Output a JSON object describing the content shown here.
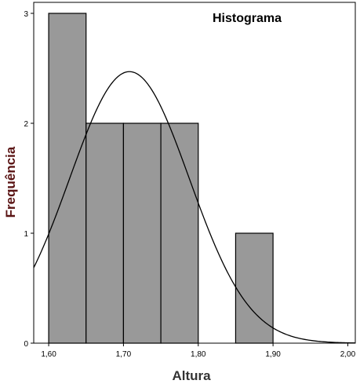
{
  "chart_data": {
    "type": "bar",
    "subtype": "histogram",
    "title": "Histograma",
    "xlabel": "Altura",
    "ylabel": "Frequência",
    "xlim": [
      1.58,
      2.01
    ],
    "ylim": [
      0,
      3.1
    ],
    "x_ticks": [
      {
        "value": 1.6,
        "label": "1,60"
      },
      {
        "value": 1.7,
        "label": "1,70"
      },
      {
        "value": 1.8,
        "label": "1,80"
      },
      {
        "value": 1.9,
        "label": "1,90"
      },
      {
        "value": 2.0,
        "label": "2,00"
      }
    ],
    "y_ticks": [
      {
        "value": 0,
        "label": "0"
      },
      {
        "value": 1,
        "label": "1"
      },
      {
        "value": 2,
        "label": "2"
      },
      {
        "value": 3,
        "label": "3"
      }
    ],
    "bins": [
      {
        "start": 1.6,
        "end": 1.65,
        "count": 3
      },
      {
        "start": 1.65,
        "end": 1.7,
        "count": 2
      },
      {
        "start": 1.7,
        "end": 1.75,
        "count": 2
      },
      {
        "start": 1.75,
        "end": 1.8,
        "count": 2
      },
      {
        "start": 1.8,
        "end": 1.85,
        "count": 0
      },
      {
        "start": 1.85,
        "end": 1.9,
        "count": 1
      }
    ],
    "normal_curve": {
      "mean": 1.708,
      "sd": 0.08,
      "peak": 2.47
    },
    "grid": false,
    "legend": "none",
    "colors": {
      "bar_fill": "#999999",
      "bar_stroke": "#000000",
      "curve": "#000000",
      "ylabel_color": "#5a1414",
      "xlabel_color": "#333333"
    }
  }
}
